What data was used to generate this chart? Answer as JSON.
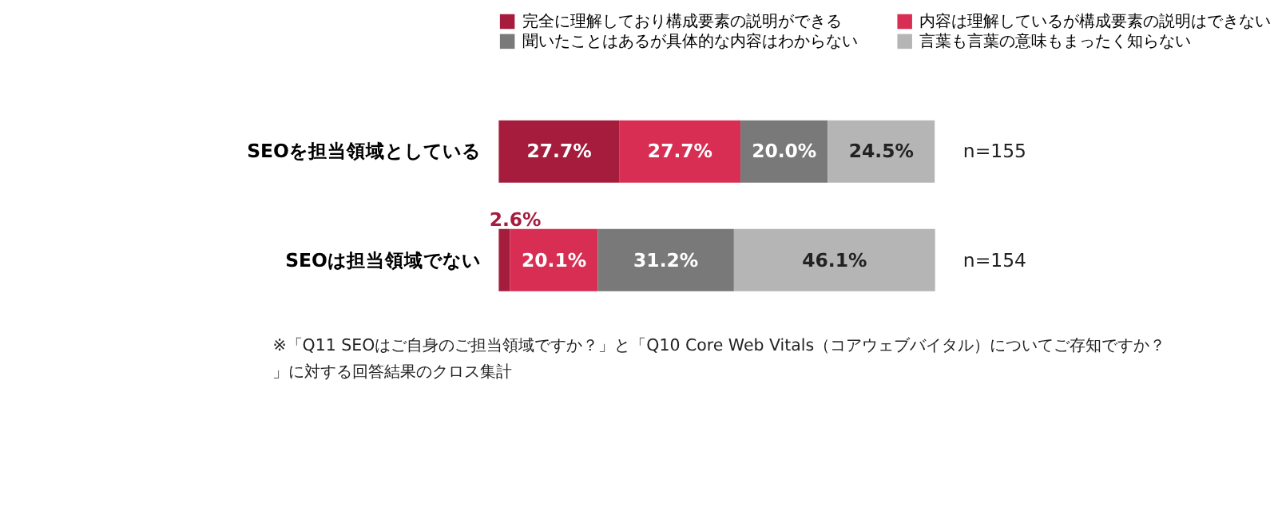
{
  "chart_data": {
    "type": "bar",
    "orientation": "horizontal",
    "stacked": true,
    "categories": [
      "SEOを担当領域としている",
      "SEOは担当領域でない"
    ],
    "series": [
      {
        "name": "完全に理解しており構成要素の説明ができる",
        "color": "#a51c3c",
        "values": [
          27.7,
          2.6
        ],
        "value_labels": [
          "27.7%",
          "2.6%"
        ]
      },
      {
        "name": "内容は理解しているが構成要素の説明はできない",
        "color": "#d92e54",
        "values": [
          27.7,
          20.1
        ],
        "value_labels": [
          "27.7%",
          "20.1%"
        ]
      },
      {
        "name": "聞いたことはあるが具体的な内容はわからない",
        "color": "#797979",
        "values": [
          20.0,
          31.2
        ],
        "value_labels": [
          "20.0%",
          "31.2%"
        ]
      },
      {
        "name": "言葉も言葉の意味もまったく知らない",
        "color": "#b5b5b5",
        "values": [
          24.5,
          46.1
        ],
        "value_labels": [
          "24.5%",
          "46.1%"
        ]
      }
    ],
    "xlim": [
      0,
      100
    ],
    "tick_labels": "y",
    "grid": false,
    "legend": "top",
    "annotations": [
      "n=155",
      "n=154",
      "※「Q11 SEOはご自身のご担当領域ですか？」と「Q10 Core Web Vitals（コアウェブバイタル）についてご存知ですか？」に対する回答結果のクロス集計"
    ]
  }
}
